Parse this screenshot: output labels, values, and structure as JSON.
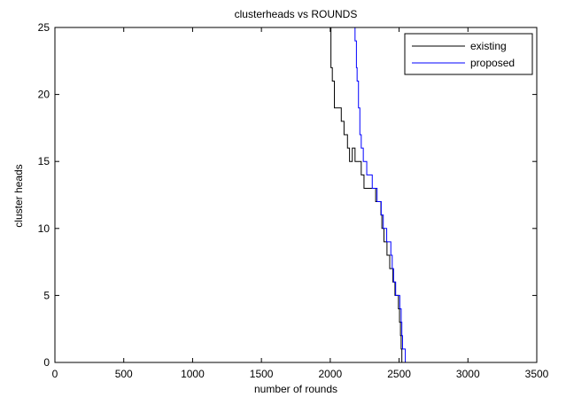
{
  "chart_data": {
    "type": "line",
    "title": "clusterheads vs ROUNDS",
    "xlabel": "number of rounds",
    "ylabel": "cluster heads",
    "xlim": [
      0,
      3500
    ],
    "ylim": [
      0,
      25
    ],
    "xticks": [
      0,
      500,
      1000,
      1500,
      2000,
      2500,
      3000,
      3500
    ],
    "yticks": [
      0,
      5,
      10,
      15,
      20,
      25
    ],
    "grid": false,
    "legend_position": "top-right",
    "series": [
      {
        "name": "existing",
        "color": "#000000",
        "x": [
          2000,
          2005,
          2015,
          2030,
          2060,
          2080,
          2100,
          2125,
          2140,
          2160,
          2180,
          2200,
          2225,
          2245,
          2265,
          2290,
          2305,
          2330,
          2355,
          2368,
          2375,
          2383,
          2390,
          2400,
          2412,
          2425,
          2432,
          2440,
          2455,
          2470,
          2480,
          2495,
          2503,
          2510,
          2515,
          2520
        ],
        "y": [
          25,
          22,
          21,
          19,
          19,
          18,
          17,
          16,
          15,
          16,
          15,
          15,
          14,
          13,
          13,
          13,
          13,
          12,
          12,
          11,
          10,
          10,
          9,
          9,
          8,
          8,
          7,
          7,
          6,
          5,
          5,
          4,
          3,
          2,
          1,
          0
        ]
      },
      {
        "name": "proposed",
        "color": "#0000ff",
        "x": [
          2175,
          2180,
          2190,
          2195,
          2205,
          2215,
          2225,
          2240,
          2265,
          2305,
          2340,
          2355,
          2370,
          2385,
          2410,
          2430,
          2440,
          2450,
          2460,
          2475,
          2490,
          2505,
          2515,
          2520,
          2525,
          2530,
          2545
        ],
        "y": [
          25,
          24,
          22,
          21,
          19,
          17,
          16,
          15,
          14,
          13,
          12,
          12,
          11,
          10,
          9,
          9,
          8,
          7,
          6,
          5,
          5,
          4,
          3,
          2,
          1,
          1,
          0
        ]
      }
    ]
  }
}
